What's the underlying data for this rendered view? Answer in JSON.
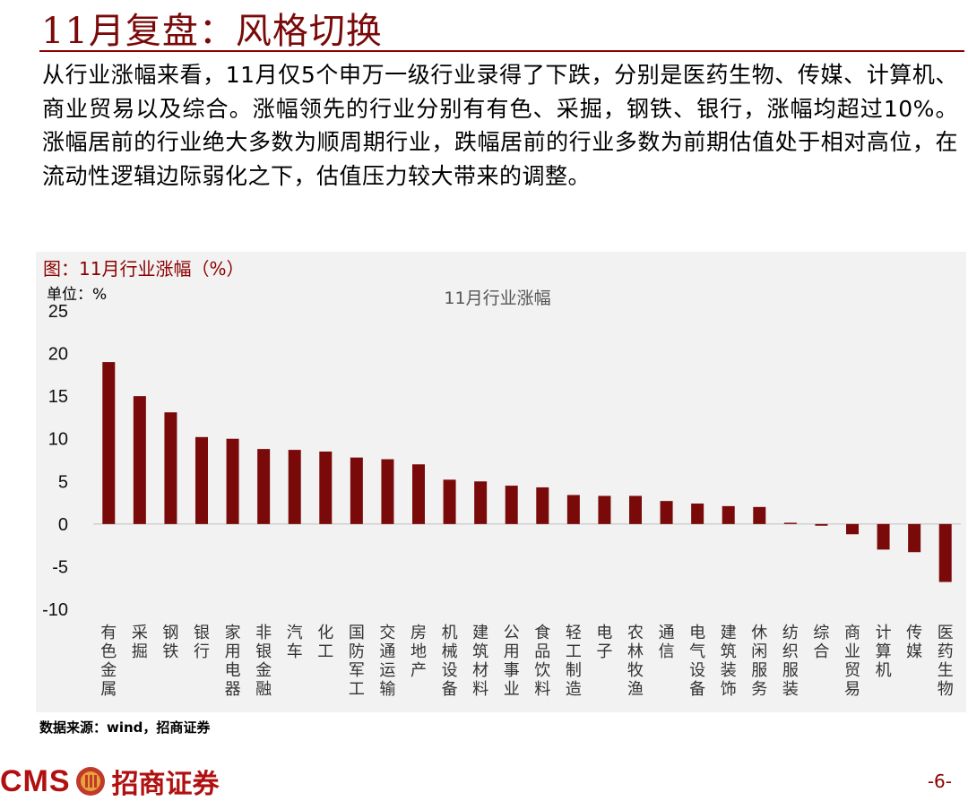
{
  "page": {
    "title": "11月复盘：风格切换",
    "intro": "从行业涨幅来看，11月仅5个申万一级行业录得了下跌，分别是医药生物、传媒、计算机、商业贸易以及综合。涨幅领先的行业分别有有色、采掘，钢铁、银行，涨幅均超过10%。涨幅居前的行业绝大多数为顺周期行业，跌幅居前的行业多数为前期估值处于相对高位，在流动性逻辑边际弱化之下，估值压力较大带来的调整。",
    "figure_title": "图：11月行业涨幅（%）",
    "unit_label": "单位：%",
    "source": "数据来源：wind，招商证券",
    "logo_text": "CMS",
    "logo_cn": "招商证券",
    "page_number": "-6-"
  },
  "chart_data": {
    "type": "bar",
    "title": "11月行业涨幅",
    "color": "#7a0a0a",
    "ylim": [
      -10,
      25
    ],
    "yticks": [
      25,
      20,
      15,
      10,
      5,
      0,
      -5,
      -10
    ],
    "grid": false,
    "categories": [
      "有色金属",
      "采掘",
      "钢铁",
      "银行",
      "家用电器",
      "非银金融",
      "汽车",
      "化工",
      "国防军工",
      "交通运输",
      "房地产",
      "机械设备",
      "建筑材料",
      "公用事业",
      "食品饮料",
      "轻工制造",
      "电子",
      "农林牧渔",
      "通信",
      "电气设备",
      "建筑装饰",
      "休闲服务",
      "纺织服装",
      "综合",
      "商业贸易",
      "计算机",
      "传媒",
      "医药生物"
    ],
    "values": [
      19.0,
      15.0,
      13.1,
      10.2,
      10.0,
      8.8,
      8.7,
      8.5,
      7.8,
      7.6,
      7.0,
      5.2,
      5.0,
      4.5,
      4.3,
      3.4,
      3.3,
      3.3,
      2.7,
      2.4,
      2.1,
      2.0,
      0.15,
      -0.2,
      -1.2,
      -3.0,
      -3.3,
      -6.8
    ]
  }
}
